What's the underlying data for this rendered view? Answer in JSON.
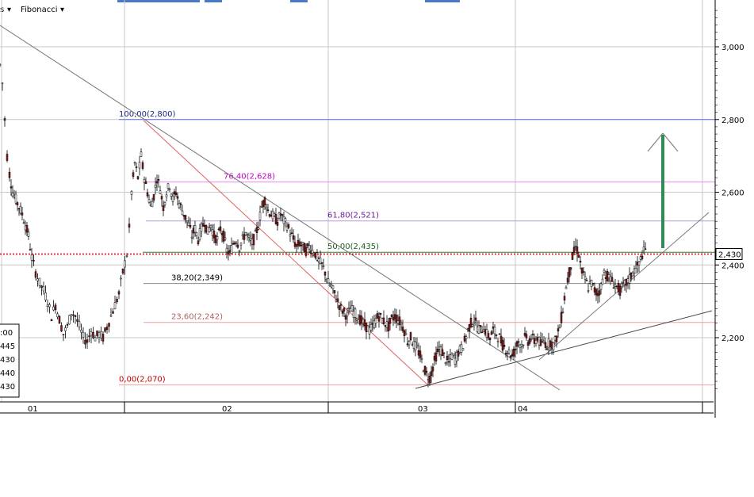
{
  "toolbar": {
    "left_fragment": "s",
    "fibonacci_label": "Fibonacci",
    "dropdown_glyph": "▾"
  },
  "colors": {
    "grid": "#c8c8c8",
    "candle_up": "#ffffff",
    "candle_down": "#8b1a1a",
    "wick": "#000000",
    "fib_100": "#5a6ee0",
    "fib_76": "#ee88ee",
    "fib_61": "#b899d8",
    "fib_50": "#2e7d32",
    "fib_38": "#888888",
    "fib_23": "#e8a0a0",
    "fib_0": "#f0a0a0",
    "price_marker": "#cc0000",
    "target_arrow": "#2e8b57",
    "trendline": "#555555",
    "fib_base": "#e06060",
    "tab_accent": "#4a78c8"
  },
  "chart_data": {
    "type": "candlestick",
    "x_ticks": [
      "01",
      "02",
      "03",
      "04"
    ],
    "y_ticks": [
      "3,000",
      "2,800",
      "2,600",
      "2,400",
      "2,200"
    ],
    "ylim": [
      2020,
      3120
    ],
    "current_price_label": "2,430",
    "current_price": 2.43,
    "fibonacci_levels": [
      {
        "label": "100,00(2,800)",
        "value": 2800,
        "color": "fib_100"
      },
      {
        "label": "76,40(2,628)",
        "value": 2628,
        "color": "fib_76"
      },
      {
        "label": "61,80(2,521)",
        "value": 2521,
        "color": "fib_61"
      },
      {
        "label": "50,00(2,435)",
        "value": 2435,
        "color": "fib_50"
      },
      {
        "label": "38,20(2,349)",
        "value": 2349,
        "color": "fib_38"
      },
      {
        "label": "23,60(2,242)",
        "value": 2242,
        "color": "fib_23"
      },
      {
        "label": "0,00(2,070)",
        "value": 2070,
        "color": "fib_0"
      }
    ],
    "left_box_values": [
      ":00",
      "445",
      "430",
      "440",
      "430"
    ],
    "price_path": [
      [
        0,
        2950
      ],
      [
        3,
        2900
      ],
      [
        6,
        2800
      ],
      [
        9,
        2700
      ],
      [
        12,
        2650
      ],
      [
        16,
        2600
      ],
      [
        20,
        2580
      ],
      [
        24,
        2560
      ],
      [
        28,
        2540
      ],
      [
        32,
        2510
      ],
      [
        36,
        2480
      ],
      [
        40,
        2420
      ],
      [
        45,
        2380
      ],
      [
        50,
        2350
      ],
      [
        55,
        2330
      ],
      [
        60,
        2300
      ],
      [
        65,
        2260
      ],
      [
        70,
        2290
      ],
      [
        75,
        2250
      ],
      [
        80,
        2210
      ],
      [
        85,
        2230
      ],
      [
        90,
        2270
      ],
      [
        95,
        2260
      ],
      [
        100,
        2230
      ],
      [
        105,
        2200
      ],
      [
        110,
        2190
      ],
      [
        115,
        2220
      ],
      [
        120,
        2200
      ],
      [
        125,
        2210
      ],
      [
        130,
        2200
      ],
      [
        135,
        2230
      ],
      [
        140,
        2260
      ],
      [
        145,
        2290
      ],
      [
        150,
        2320
      ],
      [
        155,
        2380
      ],
      [
        160,
        2430
      ],
      [
        163,
        2500
      ],
      [
        166,
        2600
      ],
      [
        170,
        2680
      ],
      [
        174,
        2640
      ],
      [
        178,
        2700
      ],
      [
        182,
        2640
      ],
      [
        186,
        2600
      ],
      [
        190,
        2560
      ],
      [
        194,
        2590
      ],
      [
        198,
        2640
      ],
      [
        202,
        2610
      ],
      [
        206,
        2560
      ],
      [
        210,
        2600
      ],
      [
        214,
        2620
      ],
      [
        218,
        2580
      ],
      [
        222,
        2600
      ],
      [
        226,
        2570
      ],
      [
        230,
        2550
      ],
      [
        234,
        2530
      ],
      [
        238,
        2510
      ],
      [
        242,
        2480
      ],
      [
        246,
        2500
      ],
      [
        250,
        2470
      ],
      [
        254,
        2500
      ],
      [
        258,
        2520
      ],
      [
        262,
        2490
      ],
      [
        266,
        2510
      ],
      [
        270,
        2480
      ],
      [
        274,
        2470
      ],
      [
        278,
        2500
      ],
      [
        282,
        2480
      ],
      [
        286,
        2440
      ],
      [
        290,
        2430
      ],
      [
        294,
        2460
      ],
      [
        298,
        2470
      ],
      [
        302,
        2450
      ],
      [
        306,
        2470
      ],
      [
        310,
        2490
      ],
      [
        314,
        2470
      ],
      [
        318,
        2460
      ],
      [
        322,
        2480
      ],
      [
        326,
        2510
      ],
      [
        330,
        2560
      ],
      [
        334,
        2580
      ],
      [
        338,
        2550
      ],
      [
        342,
        2540
      ],
      [
        346,
        2530
      ],
      [
        350,
        2520
      ],
      [
        354,
        2540
      ],
      [
        358,
        2520
      ],
      [
        362,
        2510
      ],
      [
        366,
        2490
      ],
      [
        370,
        2470
      ],
      [
        374,
        2450
      ],
      [
        378,
        2460
      ],
      [
        382,
        2450
      ],
      [
        386,
        2440
      ],
      [
        390,
        2450
      ],
      [
        394,
        2440
      ],
      [
        398,
        2430
      ],
      [
        402,
        2410
      ],
      [
        406,
        2400
      ],
      [
        410,
        2380
      ],
      [
        414,
        2350
      ],
      [
        418,
        2340
      ],
      [
        422,
        2320
      ],
      [
        426,
        2300
      ],
      [
        430,
        2280
      ],
      [
        434,
        2270
      ],
      [
        438,
        2260
      ],
      [
        442,
        2280
      ],
      [
        446,
        2270
      ],
      [
        450,
        2260
      ],
      [
        454,
        2250
      ],
      [
        458,
        2240
      ],
      [
        462,
        2230
      ],
      [
        466,
        2220
      ],
      [
        470,
        2230
      ],
      [
        474,
        2250
      ],
      [
        478,
        2260
      ],
      [
        482,
        2250
      ],
      [
        486,
        2240
      ],
      [
        490,
        2230
      ],
      [
        494,
        2250
      ],
      [
        498,
        2260
      ],
      [
        502,
        2250
      ],
      [
        506,
        2240
      ],
      [
        510,
        2220
      ],
      [
        514,
        2190
      ],
      [
        518,
        2200
      ],
      [
        522,
        2180
      ],
      [
        526,
        2170
      ],
      [
        530,
        2150
      ],
      [
        534,
        2120
      ],
      [
        538,
        2100
      ],
      [
        542,
        2090
      ],
      [
        546,
        2120
      ],
      [
        550,
        2150
      ],
      [
        554,
        2170
      ],
      [
        558,
        2160
      ],
      [
        562,
        2140
      ],
      [
        566,
        2130
      ],
      [
        570,
        2150
      ],
      [
        574,
        2140
      ],
      [
        578,
        2160
      ],
      [
        582,
        2170
      ],
      [
        586,
        2190
      ],
      [
        590,
        2220
      ],
      [
        594,
        2240
      ],
      [
        598,
        2250
      ],
      [
        602,
        2230
      ],
      [
        606,
        2220
      ],
      [
        610,
        2230
      ],
      [
        614,
        2210
      ],
      [
        618,
        2200
      ],
      [
        622,
        2220
      ],
      [
        626,
        2210
      ],
      [
        630,
        2200
      ],
      [
        634,
        2180
      ],
      [
        638,
        2170
      ],
      [
        642,
        2160
      ],
      [
        646,
        2150
      ],
      [
        650,
        2170
      ],
      [
        654,
        2190
      ],
      [
        658,
        2180
      ],
      [
        662,
        2200
      ],
      [
        666,
        2190
      ],
      [
        670,
        2200
      ],
      [
        674,
        2190
      ],
      [
        678,
        2200
      ],
      [
        682,
        2180
      ],
      [
        686,
        2190
      ],
      [
        690,
        2180
      ],
      [
        694,
        2190
      ],
      [
        698,
        2180
      ],
      [
        702,
        2200
      ],
      [
        706,
        2230
      ],
      [
        710,
        2280
      ],
      [
        714,
        2340
      ],
      [
        718,
        2380
      ],
      [
        722,
        2420
      ],
      [
        726,
        2450
      ],
      [
        730,
        2430
      ],
      [
        734,
        2380
      ],
      [
        738,
        2360
      ],
      [
        742,
        2340
      ],
      [
        746,
        2350
      ],
      [
        750,
        2330
      ],
      [
        754,
        2320
      ],
      [
        758,
        2340
      ],
      [
        762,
        2380
      ],
      [
        766,
        2370
      ],
      [
        770,
        2360
      ],
      [
        774,
        2350
      ],
      [
        778,
        2340
      ],
      [
        782,
        2330
      ],
      [
        786,
        2340
      ],
      [
        790,
        2350
      ],
      [
        794,
        2360
      ],
      [
        798,
        2380
      ],
      [
        802,
        2390
      ],
      [
        806,
        2400
      ],
      [
        810,
        2430
      ],
      [
        814,
        2440
      ],
      [
        816,
        2430
      ]
    ]
  }
}
